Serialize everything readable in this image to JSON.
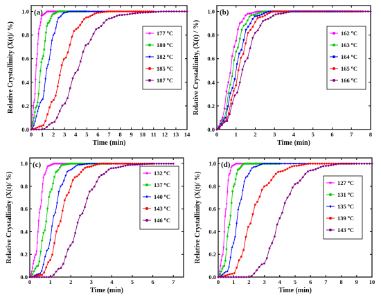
{
  "chart_data": [
    {
      "type": "line",
      "panel_label": "(a)",
      "xlabel": "Time (min)",
      "ylabel": "Relative Crystallinity (X(t)/ %)",
      "xlim": [
        0,
        14
      ],
      "ylim": [
        0,
        1.05
      ],
      "xticks": [
        0,
        1,
        2,
        3,
        4,
        5,
        6,
        7,
        8,
        9,
        10,
        11,
        12,
        13,
        14
      ],
      "yticks": [
        0.0,
        0.2,
        0.4,
        0.6,
        0.8,
        1.0
      ],
      "legend_position": "right",
      "series": [
        {
          "name": "177 oC",
          "color": "#ff00ff",
          "marker": "star",
          "x_end": 3.0,
          "points": [
            [
              0,
              0
            ],
            [
              0.3,
              0.25
            ],
            [
              0.5,
              0.6
            ],
            [
              0.7,
              0.85
            ],
            [
              1.0,
              0.97
            ],
            [
              1.5,
              1.0
            ]
          ]
        },
        {
          "name": "180 oC",
          "color": "#00cc00",
          "marker": "circle",
          "x_end": 5.0,
          "points": [
            [
              0,
              0
            ],
            [
              0.5,
              0.2
            ],
            [
              1.0,
              0.6
            ],
            [
              1.5,
              0.9
            ],
            [
              2.0,
              0.98
            ],
            [
              2.5,
              1.0
            ]
          ]
        },
        {
          "name": "182 oC",
          "color": "#0000ff",
          "marker": "diamond",
          "x_end": 7.0,
          "points": [
            [
              0,
              0
            ],
            [
              1.0,
              0.25
            ],
            [
              1.5,
              0.55
            ],
            [
              2.0,
              0.8
            ],
            [
              2.5,
              0.95
            ],
            [
              3.0,
              0.99
            ],
            [
              3.5,
              1.0
            ]
          ]
        },
        {
          "name": "185 oC",
          "color": "#ff0000",
          "marker": "circle",
          "x_end": 11.0,
          "points": [
            [
              0,
              0
            ],
            [
              1.0,
              0.03
            ],
            [
              2.0,
              0.25
            ],
            [
              3.0,
              0.6
            ],
            [
              4.0,
              0.85
            ],
            [
              5.0,
              0.95
            ],
            [
              6.0,
              0.99
            ],
            [
              7.0,
              1.0
            ]
          ]
        },
        {
          "name": "187 oC",
          "color": "#800080",
          "marker": "circle",
          "x_end": 14.0,
          "points": [
            [
              0,
              0
            ],
            [
              1.0,
              0.0
            ],
            [
              2.0,
              0.06
            ],
            [
              3.0,
              0.22
            ],
            [
              4.0,
              0.48
            ],
            [
              5.0,
              0.72
            ],
            [
              6.0,
              0.86
            ],
            [
              7.0,
              0.94
            ],
            [
              8.0,
              0.97
            ],
            [
              10.0,
              0.99
            ],
            [
              12.0,
              1.0
            ]
          ]
        }
      ]
    },
    {
      "type": "line",
      "panel_label": "(b)",
      "xlabel": "Time (min)",
      "ylabel": "Relative Crystallinity, (X(t) / %)",
      "xlim": [
        0,
        8
      ],
      "ylim": [
        0,
        1.05
      ],
      "xticks": [
        0,
        1,
        2,
        3,
        4,
        5,
        6,
        7,
        8
      ],
      "yticks": [
        0.0,
        0.2,
        0.4,
        0.6,
        0.8,
        1.0
      ],
      "legend_position": "right",
      "series": [
        {
          "name": "162 oC",
          "color": "#ff00ff",
          "marker": "circle",
          "x_end": 6.0,
          "points": [
            [
              0,
              0
            ],
            [
              0.3,
              0.1
            ],
            [
              0.6,
              0.4
            ],
            [
              0.9,
              0.7
            ],
            [
              1.2,
              0.9
            ],
            [
              1.6,
              0.98
            ],
            [
              2.2,
              1.0
            ]
          ]
        },
        {
          "name": "163 oC",
          "color": "#00cc00",
          "marker": "circle",
          "x_end": 6.0,
          "points": [
            [
              0,
              0
            ],
            [
              0.4,
              0.1
            ],
            [
              0.7,
              0.38
            ],
            [
              1.0,
              0.66
            ],
            [
              1.4,
              0.88
            ],
            [
              1.8,
              0.97
            ],
            [
              2.5,
              1.0
            ]
          ]
        },
        {
          "name": "164 oC",
          "color": "#0000ff",
          "marker": "circle",
          "x_end": 7.0,
          "points": [
            [
              0,
              0
            ],
            [
              0.4,
              0.08
            ],
            [
              0.8,
              0.35
            ],
            [
              1.2,
              0.65
            ],
            [
              1.6,
              0.87
            ],
            [
              2.0,
              0.96
            ],
            [
              2.8,
              1.0
            ]
          ]
        },
        {
          "name": "165 oC",
          "color": "#ff0000",
          "marker": "circle",
          "x_end": 7.5,
          "points": [
            [
              0,
              0
            ],
            [
              0.5,
              0.08
            ],
            [
              0.9,
              0.33
            ],
            [
              1.3,
              0.62
            ],
            [
              1.7,
              0.84
            ],
            [
              2.2,
              0.95
            ],
            [
              3.0,
              1.0
            ]
          ]
        },
        {
          "name": "166 oC",
          "color": "#800080",
          "marker": "circle",
          "x_end": 8.0,
          "points": [
            [
              0,
              0
            ],
            [
              0.5,
              0.07
            ],
            [
              1.0,
              0.3
            ],
            [
              1.5,
              0.58
            ],
            [
              2.0,
              0.82
            ],
            [
              2.5,
              0.93
            ],
            [
              3.2,
              0.98
            ],
            [
              4.0,
              1.0
            ]
          ]
        }
      ]
    },
    {
      "type": "line",
      "panel_label": "(c)",
      "xlabel": "Time (min)",
      "ylabel": "Relative Crystallinity (X(t)/ %)",
      "xlim": [
        0,
        7.5
      ],
      "ylim": [
        0,
        1.05
      ],
      "xticks": [
        0,
        1,
        2,
        3,
        4,
        5,
        6,
        7
      ],
      "yticks": [
        0.0,
        0.2,
        0.4,
        0.6,
        0.8,
        1.0
      ],
      "legend_position": "right",
      "series": [
        {
          "name": "132 oC",
          "color": "#ff00ff",
          "marker": "star",
          "x_end": 2.0,
          "points": [
            [
              0,
              0
            ],
            [
              0.3,
              0.2
            ],
            [
              0.5,
              0.6
            ],
            [
              0.7,
              0.9
            ],
            [
              0.9,
              0.98
            ],
            [
              1.2,
              1.0
            ]
          ]
        },
        {
          "name": "137 oC",
          "color": "#00cc00",
          "marker": "circle",
          "x_end": 4.0,
          "points": [
            [
              0,
              0
            ],
            [
              0.4,
              0.1
            ],
            [
              0.7,
              0.4
            ],
            [
              1.0,
              0.75
            ],
            [
              1.3,
              0.93
            ],
            [
              1.6,
              0.99
            ],
            [
              2.0,
              1.0
            ]
          ]
        },
        {
          "name": "140 oC",
          "color": "#0000ff",
          "marker": "diamond",
          "x_end": 5.0,
          "points": [
            [
              0,
              0
            ],
            [
              0.5,
              0.03
            ],
            [
              0.9,
              0.25
            ],
            [
              1.2,
              0.55
            ],
            [
              1.5,
              0.8
            ],
            [
              1.9,
              0.94
            ],
            [
              2.4,
              0.99
            ],
            [
              3.0,
              1.0
            ]
          ]
        },
        {
          "name": "143 oC",
          "color": "#ff0000",
          "marker": "circle",
          "x_end": 6.0,
          "points": [
            [
              0,
              0
            ],
            [
              0.6,
              0.02
            ],
            [
              1.0,
              0.15
            ],
            [
              1.4,
              0.45
            ],
            [
              1.8,
              0.72
            ],
            [
              2.2,
              0.88
            ],
            [
              2.8,
              0.97
            ],
            [
              3.5,
              1.0
            ]
          ]
        },
        {
          "name": "146 oC",
          "color": "#800080",
          "marker": "circle",
          "x_end": 7.0,
          "points": [
            [
              0,
              0
            ],
            [
              1.0,
              0.0
            ],
            [
              1.5,
              0.08
            ],
            [
              2.0,
              0.28
            ],
            [
              2.5,
              0.55
            ],
            [
              3.0,
              0.77
            ],
            [
              3.5,
              0.9
            ],
            [
              4.0,
              0.96
            ],
            [
              5.0,
              0.99
            ],
            [
              6.0,
              1.0
            ]
          ]
        }
      ]
    },
    {
      "type": "line",
      "panel_label": "(d)",
      "xlabel": "Time (min)",
      "ylabel": "Relative Crystallinity (X(t)/ %)",
      "xlim": [
        0,
        10
      ],
      "ylim": [
        0,
        1.05
      ],
      "xticks": [
        0,
        1,
        2,
        3,
        4,
        5,
        6,
        7,
        8,
        9,
        10
      ],
      "yticks": [
        0.0,
        0.2,
        0.4,
        0.6,
        0.8,
        1.0
      ],
      "legend_position": "right",
      "series": [
        {
          "name": "127 oC",
          "color": "#ff00ff",
          "marker": "star",
          "x_end": 3.0,
          "points": [
            [
              0,
              0
            ],
            [
              0.3,
              0.2
            ],
            [
              0.5,
              0.6
            ],
            [
              0.7,
              0.9
            ],
            [
              0.9,
              0.98
            ],
            [
              1.2,
              1.0
            ]
          ]
        },
        {
          "name": "131 oC",
          "color": "#00cc00",
          "marker": "circle",
          "x_end": 4.0,
          "points": [
            [
              0,
              0
            ],
            [
              0.4,
              0.1
            ],
            [
              0.7,
              0.45
            ],
            [
              1.0,
              0.8
            ],
            [
              1.3,
              0.95
            ],
            [
              1.7,
              1.0
            ]
          ]
        },
        {
          "name": "135 oC",
          "color": "#0000ff",
          "marker": "diamond",
          "x_end": 6.0,
          "points": [
            [
              0,
              0
            ],
            [
              0.6,
              0.05
            ],
            [
              1.0,
              0.3
            ],
            [
              1.4,
              0.65
            ],
            [
              1.8,
              0.88
            ],
            [
              2.3,
              0.97
            ],
            [
              3.0,
              1.0
            ]
          ]
        },
        {
          "name": "139 oC",
          "color": "#ff0000",
          "marker": "circle",
          "x_end": 9.0,
          "points": [
            [
              0,
              0
            ],
            [
              1.0,
              0.03
            ],
            [
              1.5,
              0.18
            ],
            [
              2.0,
              0.45
            ],
            [
              2.5,
              0.66
            ],
            [
              3.0,
              0.8
            ],
            [
              4.0,
              0.93
            ],
            [
              5.0,
              0.98
            ],
            [
              6.0,
              1.0
            ]
          ]
        },
        {
          "name": "143 oC",
          "color": "#800080",
          "marker": "circle",
          "x_end": 10.0,
          "points": [
            [
              0,
              0
            ],
            [
              2.0,
              0.0
            ],
            [
              3.0,
              0.12
            ],
            [
              3.5,
              0.3
            ],
            [
              4.0,
              0.52
            ],
            [
              4.5,
              0.7
            ],
            [
              5.0,
              0.82
            ],
            [
              6.0,
              0.94
            ],
            [
              7.0,
              0.98
            ],
            [
              8.0,
              1.0
            ]
          ]
        }
      ]
    }
  ]
}
